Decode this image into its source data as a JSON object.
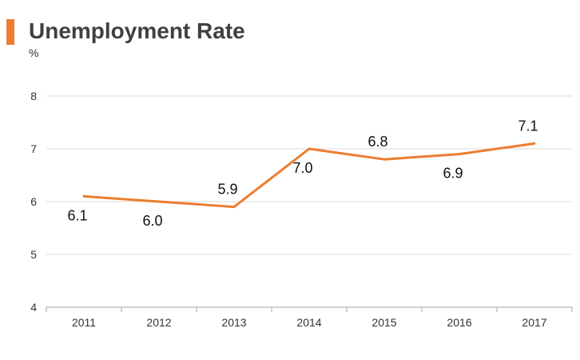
{
  "header": {
    "title": "Unemployment Rate"
  },
  "colors": {
    "accent": "#ED7D31",
    "line": "#ED7D31",
    "grid": "#D9D9D9",
    "axis": "#A6A6A6"
  },
  "chart_data": {
    "type": "line",
    "title": "Unemployment Rate",
    "ylabel": "%",
    "xlabel": "",
    "categories": [
      "2011",
      "2012",
      "2013",
      "2014",
      "2015",
      "2016",
      "2017"
    ],
    "values": [
      6.1,
      6.0,
      5.9,
      7.0,
      6.8,
      6.9,
      7.1
    ],
    "data_labels": [
      "6.1",
      "6.0",
      "5.9",
      "7.0",
      "6.8",
      "6.9",
      "7.1"
    ],
    "label_positions": [
      "below",
      "below",
      "above",
      "below",
      "above",
      "below",
      "above"
    ],
    "ylim": [
      4,
      8
    ],
    "yticks": [
      "4",
      "5",
      "6",
      "7",
      "8"
    ],
    "grid": true,
    "legend": "none"
  }
}
